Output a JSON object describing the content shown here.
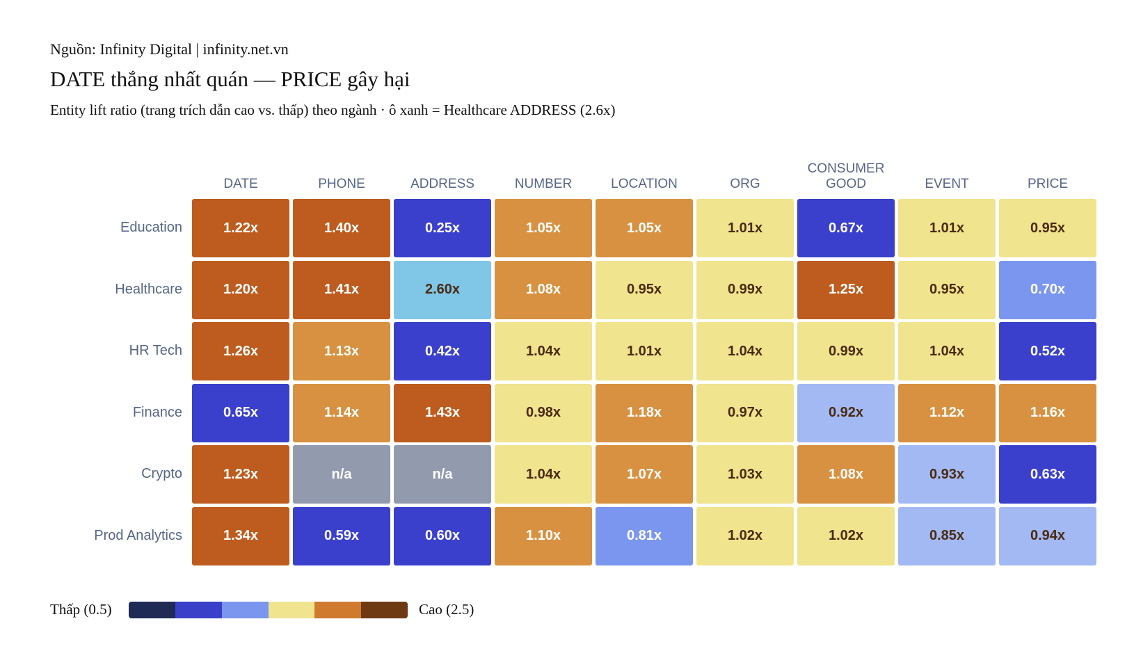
{
  "chart_data": {
    "type": "heatmap",
    "source": "Nguồn: Infinity Digital | infinity.net.vn",
    "title": "DATE thắng nhất quán — PRICE gây hại",
    "subtitle": "Entity lift ratio (trang trích dẫn cao vs. thấp) theo ngành · ô xanh = Healthcare ADDRESS (2.6x)",
    "x": [
      "DATE",
      "PHONE",
      "ADDRESS",
      "NUMBER",
      "LOCATION",
      "ORG",
      "CONSUMER GOOD",
      "EVENT",
      "PRICE"
    ],
    "y": [
      "Education",
      "Healthcare",
      "HR Tech",
      "Finance",
      "Crypto",
      "Prod Analytics"
    ],
    "values": [
      [
        1.22,
        1.4,
        0.25,
        1.05,
        1.05,
        1.01,
        0.67,
        1.01,
        0.95
      ],
      [
        1.2,
        1.41,
        2.6,
        1.08,
        0.95,
        0.99,
        1.25,
        0.95,
        0.7
      ],
      [
        1.26,
        1.13,
        0.42,
        1.04,
        1.01,
        1.04,
        0.99,
        1.04,
        0.52
      ],
      [
        0.65,
        1.14,
        1.43,
        0.98,
        1.18,
        0.97,
        0.92,
        1.12,
        1.16
      ],
      [
        1.23,
        null,
        null,
        1.04,
        1.07,
        1.03,
        1.08,
        0.93,
        0.63
      ],
      [
        1.34,
        0.59,
        0.6,
        1.1,
        0.81,
        1.02,
        1.02,
        0.85,
        0.94
      ]
    ],
    "value_labels": [
      [
        "1.22x",
        "1.40x",
        "0.25x",
        "1.05x",
        "1.05x",
        "1.01x",
        "0.67x",
        "1.01x",
        "0.95x"
      ],
      [
        "1.20x",
        "1.41x",
        "2.60x",
        "1.08x",
        "0.95x",
        "0.99x",
        "1.25x",
        "0.95x",
        "0.70x"
      ],
      [
        "1.26x",
        "1.13x",
        "0.42x",
        "1.04x",
        "1.01x",
        "1.04x",
        "0.99x",
        "1.04x",
        "0.52x"
      ],
      [
        "0.65x",
        "1.14x",
        "1.43x",
        "0.98x",
        "1.18x",
        "0.97x",
        "0.92x",
        "1.12x",
        "1.16x"
      ],
      [
        "1.23x",
        "n/a",
        "n/a",
        "1.04x",
        "1.07x",
        "1.03x",
        "1.08x",
        "0.93x",
        "0.63x"
      ],
      [
        "1.34x",
        "0.59x",
        "0.60x",
        "1.10x",
        "0.81x",
        "1.02x",
        "1.02x",
        "0.85x",
        "0.94x"
      ]
    ],
    "colors": [
      [
        "#bd5c1e",
        "#bd5c1e",
        "#3a40cc",
        "#d79140",
        "#d79140",
        "#f0e48e",
        "#3a40cc",
        "#f0e48e",
        "#f0e48e"
      ],
      [
        "#bd5c1e",
        "#bd5c1e",
        "#80c6e6",
        "#d79140",
        "#f0e48e",
        "#f0e48e",
        "#bd5c1e",
        "#f0e48e",
        "#7b96ee"
      ],
      [
        "#bd5c1e",
        "#d79140",
        "#3a40cc",
        "#f0e48e",
        "#f0e48e",
        "#f0e48e",
        "#f0e48e",
        "#f0e48e",
        "#3a40cc"
      ],
      [
        "#3a40cc",
        "#d79140",
        "#bd5c1e",
        "#f0e48e",
        "#d79140",
        "#f0e48e",
        "#a3b9f3",
        "#d79140",
        "#d79140"
      ],
      [
        "#bd5c1e",
        "#929aae",
        "#929aae",
        "#f0e48e",
        "#d79140",
        "#f0e48e",
        "#d79140",
        "#a3b9f3",
        "#3a40cc"
      ],
      [
        "#bd5c1e",
        "#3a40cc",
        "#3a40cc",
        "#d79140",
        "#7b96ee",
        "#f0e48e",
        "#f0e48e",
        "#a3b9f3",
        "#a3b9f3"
      ]
    ],
    "colorscale": [
      "#1f2a55",
      "#3a40c8",
      "#7b96ee",
      "#f0e48e",
      "#d07a2e",
      "#6e3a12"
    ],
    "legend_low": "Thấp (0.5)",
    "legend_high": "Cao (2.5)"
  }
}
